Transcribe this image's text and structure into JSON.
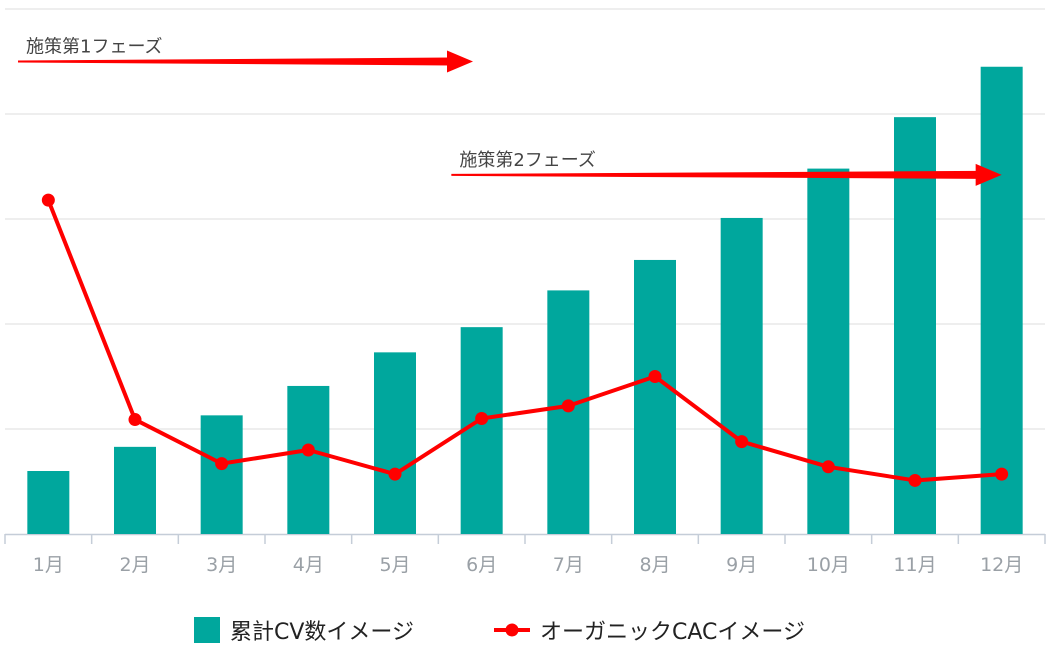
{
  "chart_data": {
    "type": "bar",
    "title": "",
    "xlabel": "",
    "ylabel": "",
    "grid": true,
    "legend_position": "bottom",
    "categories": [
      "1月",
      "2月",
      "3月",
      "4月",
      "5月",
      "6月",
      "7月",
      "8月",
      "9月",
      "10月",
      "11月",
      "12月"
    ],
    "ylim": [
      0,
      5
    ],
    "series": [
      {
        "name": "累計CV数イメージ",
        "type": "bar",
        "color": "#00a79d",
        "values": [
          0.6,
          0.83,
          1.13,
          1.41,
          1.73,
          1.97,
          2.32,
          2.61,
          3.01,
          3.48,
          3.97,
          4.45
        ]
      },
      {
        "name": "オーガニックCACイメージ",
        "type": "line",
        "color": "#ff0000",
        "values": [
          3.18,
          1.09,
          0.67,
          0.8,
          0.57,
          1.1,
          1.22,
          1.5,
          0.88,
          0.64,
          0.51,
          0.57
        ]
      }
    ],
    "annotations": [
      {
        "label": "施策第1フェーズ",
        "from": "1月",
        "to": "6月",
        "y": 4.5,
        "color": "#ff0000"
      },
      {
        "label": "施策第2フェーズ",
        "from": "6月",
        "to": "12月",
        "y": 3.42,
        "color": "#ff0000"
      }
    ]
  }
}
